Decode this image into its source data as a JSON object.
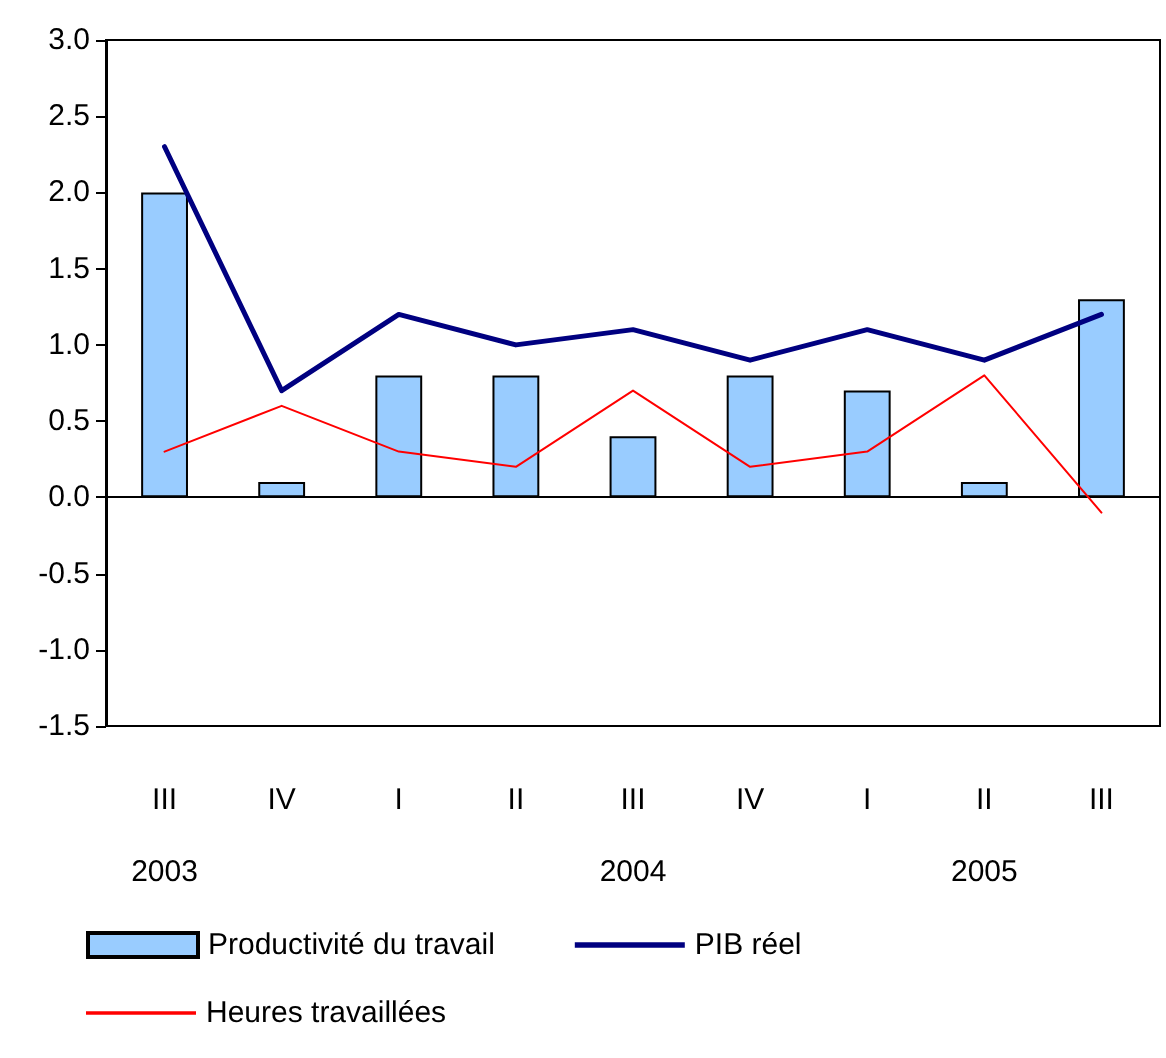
{
  "chart_data": {
    "type": "bar",
    "categories": [
      "III\n\n2003",
      "IV",
      "I",
      "II",
      "III\n\n2004",
      "IV",
      "I",
      "II\n\n2005",
      "III"
    ],
    "series": [
      {
        "name": "Productivité du travail",
        "color": "#99ccff",
        "values": [
          2.0,
          0.1,
          0.8,
          0.8,
          0.4,
          0.8,
          0.7,
          0.1,
          1.3
        ]
      },
      {
        "name": "PIB réel",
        "type": "line",
        "color": "#000080",
        "values": [
          2.3,
          0.7,
          1.2,
          1.0,
          1.1,
          0.9,
          1.1,
          0.9,
          1.2
        ]
      },
      {
        "name": "Heures travaillées",
        "type": "line",
        "color": "#ff0000",
        "values": [
          0.3,
          0.6,
          0.3,
          0.2,
          0.7,
          0.2,
          0.3,
          0.8,
          -0.1
        ]
      }
    ],
    "ylim": [
      -1.5,
      3.0
    ],
    "yticks": [
      {
        "value": -1.5,
        "label": "-1.5"
      },
      {
        "value": -1.0,
        "label": "-1.0"
      },
      {
        "value": -0.5,
        "label": "-0.5"
      },
      {
        "value": 0,
        "label": "0.0"
      },
      {
        "value": 0.5,
        "label": "0.5"
      },
      {
        "value": 1.0,
        "label": "1.0"
      },
      {
        "value": 1.5,
        "label": "1.5"
      },
      {
        "value": 2.0,
        "label": "2.0"
      },
      {
        "value": 2.5,
        "label": "2.5"
      },
      {
        "value": 3.0,
        "label": "3.0"
      }
    ],
    "legend": "bottom",
    "marker": "none",
    "line_style": "solid"
  }
}
